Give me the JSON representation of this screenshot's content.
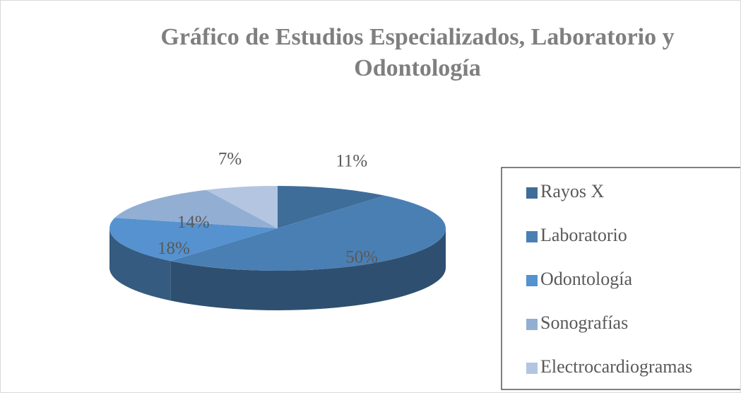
{
  "chart_data": {
    "type": "pie",
    "title": "Gráfico de Estudios Especializados, Laboratorio y Odontología",
    "categories": [
      "Rayos X",
      "Laboratorio",
      "Odontología",
      "Sonografías",
      "Electrocardiogramas"
    ],
    "values": [
      11,
      50,
      18,
      14,
      7
    ],
    "value_labels": [
      "11%",
      "50%",
      "18%",
      "14%",
      "7%"
    ],
    "colors": [
      "#3f6d99",
      "#4a7fb4",
      "#5592cf",
      "#93aed3",
      "#b3c5e0"
    ],
    "legend": "right"
  }
}
